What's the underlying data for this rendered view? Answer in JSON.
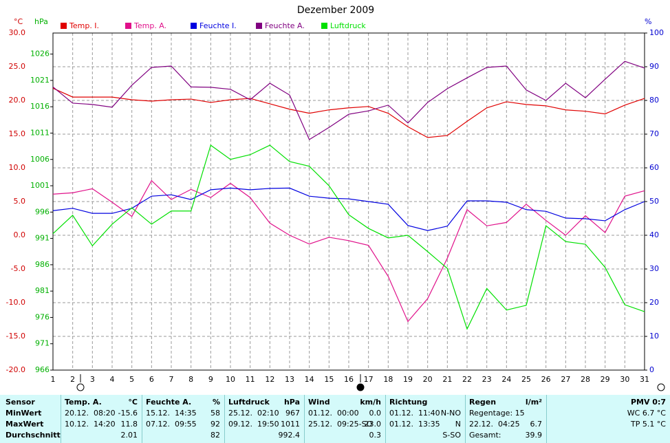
{
  "chart_data": {
    "type": "line",
    "title": "Dezember 2009",
    "y_unit": "°C",
    "y2_unit": "hPa",
    "y3_unit": "%",
    "x": [
      1,
      2,
      3,
      4,
      5,
      6,
      7,
      8,
      9,
      10,
      11,
      12,
      13,
      14,
      15,
      16,
      17,
      18,
      19,
      20,
      21,
      22,
      23,
      24,
      25,
      26,
      27,
      28,
      29,
      30,
      31
    ],
    "xlim": [
      1,
      31
    ],
    "xticks": [
      1,
      2,
      3,
      4,
      5,
      6,
      7,
      8,
      9,
      10,
      11,
      12,
      13,
      14,
      15,
      16,
      17,
      18,
      19,
      20,
      21,
      22,
      23,
      24,
      25,
      26,
      27,
      28,
      29,
      30,
      31
    ],
    "ylim": [
      -20,
      30
    ],
    "yticks": [
      {
        "value": -20,
        "label": "-20.0"
      },
      {
        "value": -15,
        "label": "-15.0"
      },
      {
        "value": -10,
        "label": "-10.0"
      },
      {
        "value": -5,
        "label": "-5.0"
      },
      {
        "value": 0,
        "label": "0.0"
      },
      {
        "value": 5,
        "label": "5.0"
      },
      {
        "value": 10,
        "label": "10.0"
      },
      {
        "value": 15,
        "label": "15.0"
      },
      {
        "value": 20,
        "label": "20.0"
      },
      {
        "value": 25,
        "label": "25.0"
      },
      {
        "value": 30,
        "label": "30.0"
      }
    ],
    "y2lim": [
      966,
      1030
    ],
    "y2ticks": [
      966,
      971,
      976,
      981,
      986,
      991,
      996,
      1001,
      1006,
      1011,
      1016,
      1021,
      1026
    ],
    "y3lim": [
      0,
      100
    ],
    "y3ticks": [
      0,
      10,
      20,
      30,
      40,
      50,
      60,
      70,
      80,
      90,
      100
    ],
    "grid": true,
    "series": [
      {
        "name": "Temp. I.",
        "color": "#e00000",
        "axis": "y",
        "values": [
          21.8,
          20.5,
          20.5,
          20.5,
          20.1,
          19.9,
          20.1,
          20.2,
          19.7,
          20.1,
          20.3,
          19.5,
          18.7,
          18.1,
          18.6,
          18.9,
          19.1,
          18.1,
          16.1,
          14.5,
          14.8,
          16.9,
          18.9,
          19.8,
          19.4,
          19.2,
          18.6,
          18.4,
          18.0,
          19.3,
          20.3
        ]
      },
      {
        "name": "Temp. A.",
        "color": "#e0108a",
        "axis": "y",
        "values": [
          6.1,
          6.3,
          6.9,
          4.9,
          2.8,
          8.1,
          5.3,
          6.8,
          5.6,
          7.7,
          5.6,
          1.8,
          0.0,
          -1.3,
          -0.3,
          -0.8,
          -1.5,
          -6.1,
          -12.8,
          -9.4,
          -3.4,
          3.8,
          1.4,
          1.9,
          4.6,
          2.2,
          0.0,
          2.9,
          0.4,
          5.8,
          6.6
        ]
      },
      {
        "name": "Feuchte I.",
        "color": "#0000e0",
        "axis": "y3",
        "values": [
          47.3,
          48,
          46.5,
          46.5,
          48,
          51.6,
          52,
          50.6,
          53.5,
          54,
          53.5,
          53.9,
          54,
          51.6,
          51,
          50.8,
          50,
          49.2,
          42.9,
          41.4,
          42.7,
          50.2,
          50.2,
          49.8,
          47.6,
          47.1,
          45.1,
          44.9,
          44.3,
          47.6,
          50
        ]
      },
      {
        "name": "Feuchte A.",
        "color": "#800080",
        "axis": "y3",
        "values": [
          84,
          79.2,
          78.8,
          78,
          84.5,
          89.8,
          90.2,
          84,
          83.9,
          83.3,
          80.2,
          85.1,
          81.6,
          68.4,
          72,
          75.9,
          76.9,
          78.6,
          73.3,
          79.4,
          83.5,
          86.7,
          89.8,
          90.2,
          83.1,
          80,
          85.1,
          80.8,
          86.3,
          91.6,
          89.6
        ]
      },
      {
        "name": "Luftdruck",
        "color": "#00e000",
        "axis": "y2",
        "values": [
          991.9,
          995.4,
          989.6,
          993.7,
          996.8,
          993.7,
          996.2,
          996.2,
          1008.7,
          1006,
          1006.9,
          1008.7,
          1005.6,
          1004.7,
          1001,
          995.5,
          992.9,
          991.1,
          991.6,
          988.5,
          985.3,
          973.8,
          981.5,
          977.4,
          978.3,
          993.4,
          990.4,
          989.9,
          985.5,
          978.4,
          977.1
        ]
      }
    ]
  },
  "table": {
    "row_labels": [
      "Sensor",
      "MinWert",
      "MaxWert",
      "Durchschnitt"
    ],
    "groups": [
      {
        "title": "Temp. A.",
        "unit": "°C",
        "rows": [
          [
            "20.12.  08:20",
            "-15.6"
          ],
          [
            "10.12.  14:20",
            "11.8"
          ],
          [
            "2.01"
          ]
        ]
      },
      {
        "title": "Feuchte A.",
        "unit": "%",
        "rows": [
          [
            "15.12.  14:35",
            "58"
          ],
          [
            "07.12.  09:55",
            "92"
          ],
          [
            "82"
          ]
        ]
      },
      {
        "title": "Luftdruck",
        "unit": "hPa",
        "rows": [
          [
            "25.12.  02:10",
            "967"
          ],
          [
            "09.12.  19:50",
            "1011"
          ],
          [
            "992.4"
          ]
        ]
      },
      {
        "title": "Wind",
        "unit": "km/h",
        "rows": [
          [
            "01.12.  00:00",
            "0.0"
          ],
          [
            "25.12.  09:25-SO",
            "23.0"
          ],
          [
            "0.3"
          ]
        ]
      },
      {
        "title": "Richtung",
        "rows": [
          [
            "01.12.  11:40",
            "N-NO"
          ],
          [
            "01.12.  13:35",
            "N"
          ],
          [
            "S-SO"
          ]
        ]
      },
      {
        "title": "Regen",
        "unit": "l/m²",
        "rows": [
          [
            "Regentage: 15"
          ],
          [
            "22.12.  04:25",
            "6.7"
          ],
          [
            "Gesamt:",
            "39.9"
          ]
        ]
      },
      {
        "title": "PMV 0:7",
        "rows": [
          [
            "WC 6.7 °C"
          ],
          [
            "TP 5.1 °C"
          ]
        ]
      }
    ]
  }
}
